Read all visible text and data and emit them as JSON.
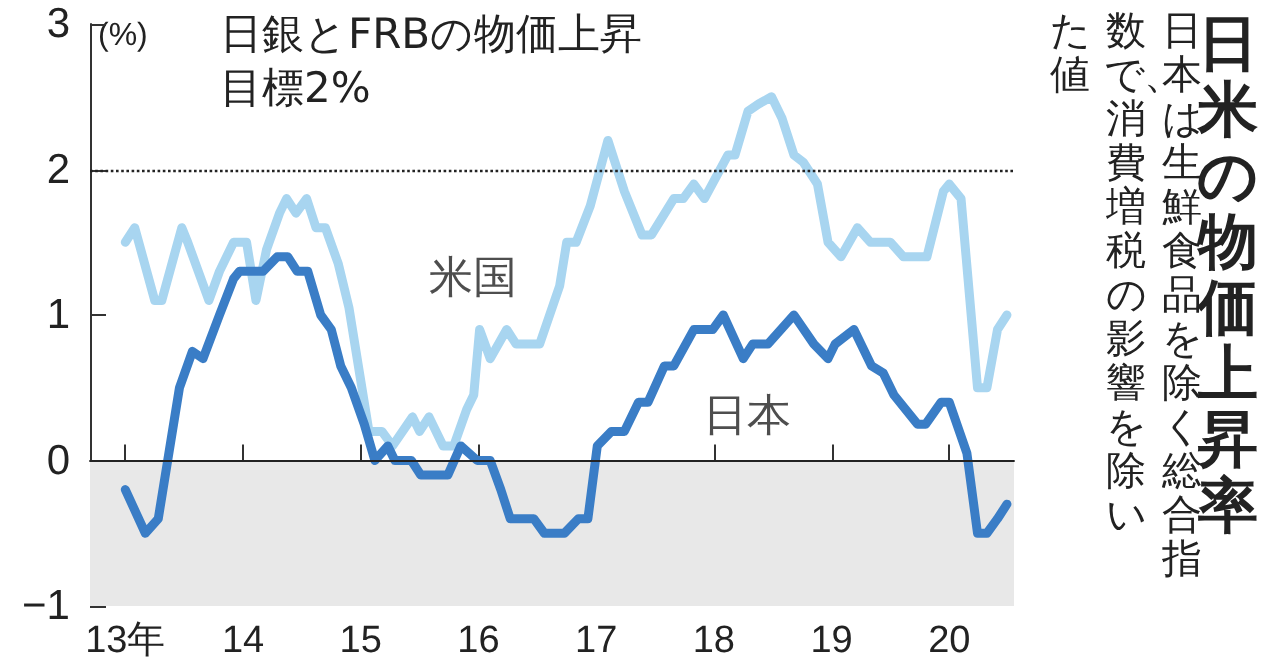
{
  "chart_data": {
    "type": "line",
    "title": "日米の物価上昇率",
    "subtitle": "日本は生鮮食品を除く総合指数で、消費増税の影響を除いた値",
    "ylabel": "(%)",
    "xlim": [
      12.7,
      20.55
    ],
    "ylim": [
      -1,
      3
    ],
    "xticks": [
      {
        "value": 13,
        "label": "13年"
      },
      14,
      15,
      16,
      17,
      18,
      19,
      20
    ],
    "yticks": [
      -1,
      0,
      1,
      2,
      3
    ],
    "grid": false,
    "legend": false,
    "marker": "none",
    "line_style": "solid",
    "ref_lines": [
      {
        "axis": "y",
        "value": 2,
        "label": "日銀とFRBの物価上昇目標2%",
        "line_style": "dotted",
        "color": "#222222"
      },
      {
        "axis": "y",
        "value": 0,
        "color": "#222222",
        "line_style": "solid"
      }
    ],
    "bands": [
      {
        "axis": "y",
        "from": -1,
        "to": 0,
        "color": "#e8e8e8"
      }
    ],
    "series": [
      {
        "name": "米国",
        "color": "#a8d5f0",
        "x": [
          13.0,
          13.08,
          13.25,
          13.31,
          13.48,
          13.53,
          13.71,
          13.8,
          13.92,
          14.03,
          14.11,
          14.2,
          14.31,
          14.37,
          14.45,
          14.54,
          14.62,
          14.7,
          14.81,
          14.9,
          14.99,
          15.07,
          15.18,
          15.27,
          15.44,
          15.5,
          15.58,
          15.7,
          15.79,
          15.9,
          15.96,
          16.01,
          16.1,
          16.24,
          16.32,
          16.52,
          16.69,
          16.75,
          16.83,
          16.95,
          17.1,
          17.24,
          17.39,
          17.47,
          17.66,
          17.74,
          17.83,
          17.92,
          18.12,
          18.18,
          18.29,
          18.38,
          18.49,
          18.58,
          18.68,
          18.76,
          18.88,
          18.97,
          19.08,
          19.22,
          19.33,
          19.5,
          19.61,
          19.81,
          19.95,
          20.0,
          20.1,
          20.24,
          20.32,
          20.41,
          20.49
        ],
        "values": [
          1.5,
          1.6,
          1.1,
          1.1,
          1.6,
          1.5,
          1.1,
          1.3,
          1.5,
          1.5,
          1.1,
          1.45,
          1.7,
          1.8,
          1.7,
          1.8,
          1.6,
          1.6,
          1.35,
          1.05,
          0.6,
          0.2,
          0.2,
          0.1,
          0.3,
          0.2,
          0.3,
          0.1,
          0.1,
          0.35,
          0.45,
          0.9,
          0.7,
          0.9,
          0.8,
          0.8,
          1.2,
          1.5,
          1.5,
          1.75,
          2.2,
          1.85,
          1.55,
          1.55,
          1.8,
          1.8,
          1.9,
          1.8,
          2.1,
          2.1,
          2.4,
          2.45,
          2.5,
          2.35,
          2.1,
          2.05,
          1.9,
          1.5,
          1.4,
          1.6,
          1.5,
          1.5,
          1.4,
          1.4,
          1.85,
          1.9,
          1.8,
          0.5,
          0.5,
          0.9,
          1.0
        ]
      },
      {
        "name": "日本",
        "color": "#3a7dc6",
        "x": [
          13.0,
          13.17,
          13.28,
          13.46,
          13.57,
          13.66,
          13.8,
          13.92,
          13.97,
          14.17,
          14.29,
          14.38,
          14.46,
          14.55,
          14.66,
          14.75,
          14.83,
          14.92,
          15.03,
          15.12,
          15.23,
          15.29,
          15.43,
          15.51,
          15.74,
          15.85,
          15.99,
          16.1,
          16.19,
          16.27,
          16.47,
          16.56,
          16.73,
          16.85,
          16.93,
          17.01,
          17.13,
          17.24,
          17.36,
          17.44,
          17.58,
          17.66,
          17.83,
          17.99,
          18.08,
          18.25,
          18.33,
          18.46,
          18.68,
          18.85,
          18.97,
          19.03,
          19.19,
          19.34,
          19.44,
          19.53,
          19.73,
          19.8,
          19.93,
          20.0,
          20.15,
          20.24,
          20.32,
          20.41,
          20.49
        ],
        "values": [
          -0.2,
          -0.5,
          -0.4,
          0.5,
          0.75,
          0.7,
          1.0,
          1.25,
          1.3,
          1.3,
          1.4,
          1.4,
          1.3,
          1.3,
          1.0,
          0.9,
          0.65,
          0.5,
          0.25,
          0.0,
          0.1,
          0.0,
          0.0,
          -0.1,
          -0.1,
          0.1,
          0.0,
          0.0,
          -0.2,
          -0.4,
          -0.4,
          -0.5,
          -0.5,
          -0.4,
          -0.4,
          0.1,
          0.2,
          0.2,
          0.4,
          0.4,
          0.65,
          0.65,
          0.9,
          0.9,
          1.0,
          0.7,
          0.8,
          0.8,
          1.0,
          0.8,
          0.7,
          0.8,
          0.9,
          0.65,
          0.6,
          0.45,
          0.25,
          0.25,
          0.4,
          0.4,
          0.05,
          -0.5,
          -0.5,
          -0.4,
          -0.3
        ]
      }
    ]
  }
}
